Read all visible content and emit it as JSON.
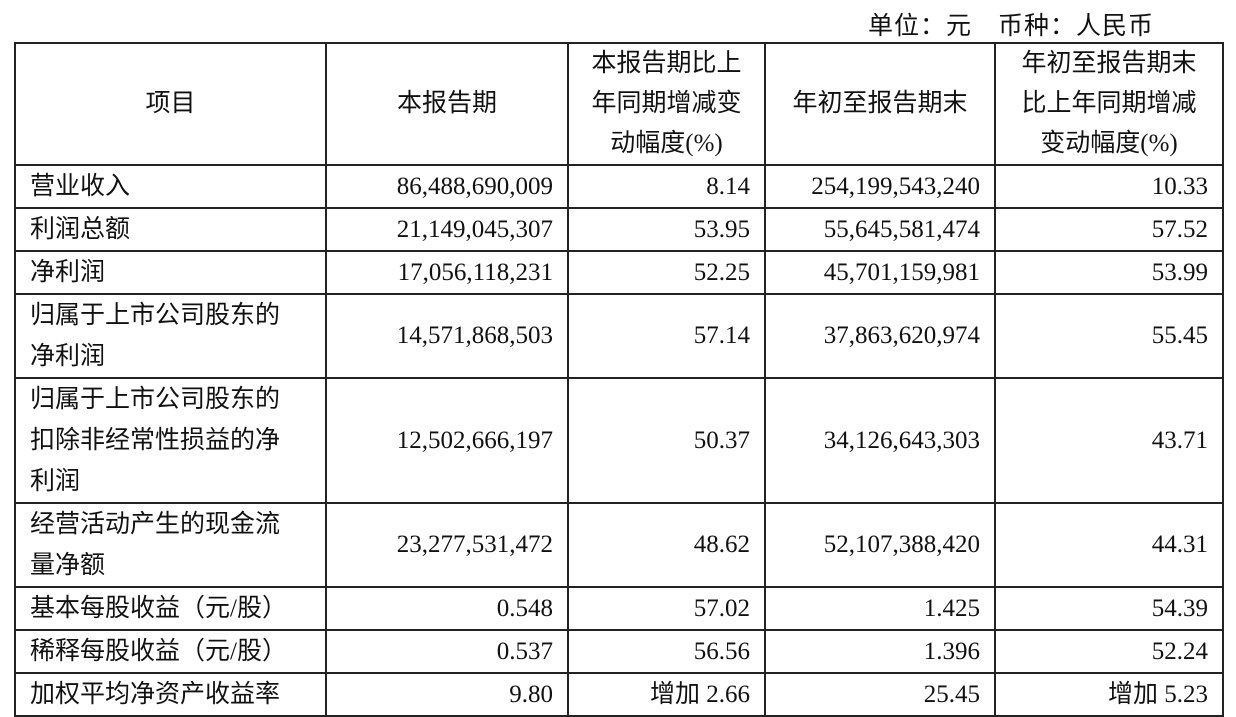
{
  "unit_line": {
    "unit": "单位：元",
    "currency": "币种：人民币"
  },
  "headers": [
    [
      "项目"
    ],
    [
      "本报告期"
    ],
    [
      "本报告期比上",
      "年同期增减变",
      "动幅度(%)"
    ],
    [
      "年初至报告期末"
    ],
    [
      "年初至报告期末",
      "比上年同期增减",
      "变动幅度(%)"
    ]
  ],
  "rows": [
    {
      "item": "营业收入",
      "current": "86,488,690,009",
      "current_change": "8.14",
      "ytd": "254,199,543,240",
      "ytd_change": "10.33"
    },
    {
      "item": "利润总额",
      "current": "21,149,045,307",
      "current_change": "53.95",
      "ytd": "55,645,581,474",
      "ytd_change": "57.52"
    },
    {
      "item": "净利润",
      "current": "17,056,118,231",
      "current_change": "52.25",
      "ytd": "45,701,159,981",
      "ytd_change": "53.99"
    },
    {
      "item": "归属于上市公司股东的净利润",
      "current": "14,571,868,503",
      "current_change": "57.14",
      "ytd": "37,863,620,974",
      "ytd_change": "55.45"
    },
    {
      "item": "归属于上市公司股东的扣除非经常性损益的净利润",
      "current": "12,502,666,197",
      "current_change": "50.37",
      "ytd": "34,126,643,303",
      "ytd_change": "43.71"
    },
    {
      "item": "经营活动产生的现金流量净额",
      "current": "23,277,531,472",
      "current_change": "48.62",
      "ytd": "52,107,388,420",
      "ytd_change": "44.31"
    },
    {
      "item": "基本每股收益（元/股）",
      "current": "0.548",
      "current_change": "57.02",
      "ytd": "1.425",
      "ytd_change": "54.39"
    },
    {
      "item": "稀释每股收益（元/股）",
      "current": "0.537",
      "current_change": "56.56",
      "ytd": "1.396",
      "ytd_change": "52.24"
    },
    {
      "item": "加权平均净资产收益率",
      "current": "9.80",
      "current_change": "增加 2.66",
      "ytd": "25.45",
      "ytd_change": "增加 5.23"
    }
  ]
}
